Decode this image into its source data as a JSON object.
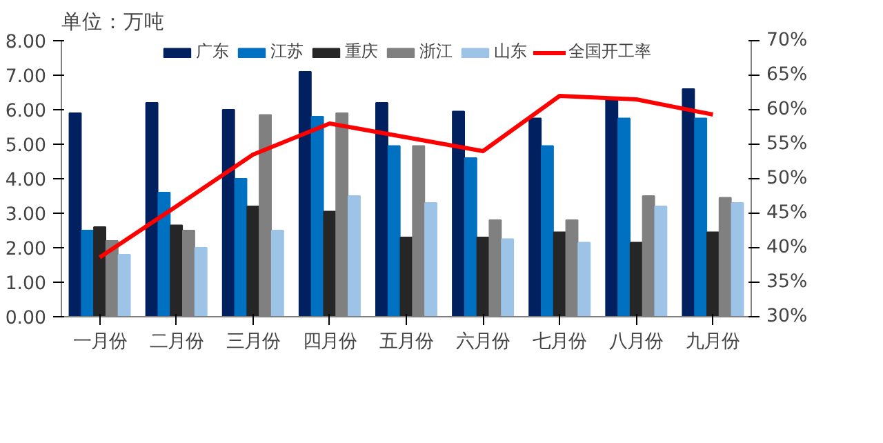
{
  "chart_data": {
    "type": "bar",
    "title": "单位：万吨",
    "categories": [
      "一月份",
      "二月份",
      "三月份",
      "四月份",
      "五月份",
      "六月份",
      "七月份",
      "八月份",
      "九月份"
    ],
    "series": [
      {
        "name": "广东",
        "color": "#002060",
        "values": [
          5.9,
          6.2,
          6.0,
          7.1,
          6.2,
          5.95,
          5.75,
          6.3,
          6.6
        ]
      },
      {
        "name": "江苏",
        "color": "#0070c0",
        "values": [
          2.5,
          3.6,
          4.0,
          5.8,
          4.95,
          4.6,
          4.95,
          5.75,
          5.75
        ]
      },
      {
        "name": "重庆",
        "color": "#262626",
        "values": [
          2.6,
          2.65,
          3.2,
          3.05,
          2.3,
          2.3,
          2.45,
          2.15,
          2.45
        ]
      },
      {
        "name": "浙江",
        "color": "#808080",
        "values": [
          2.2,
          2.5,
          5.85,
          5.9,
          4.95,
          2.8,
          2.8,
          3.5,
          3.45
        ]
      },
      {
        "name": "山东",
        "color": "#9dc3e6",
        "values": [
          1.8,
          2.0,
          2.5,
          3.5,
          3.3,
          2.25,
          2.15,
          3.2,
          3.3
        ]
      },
      {
        "name": "全国开工率",
        "color": "#ff0000",
        "type": "line",
        "axis": "y2",
        "values": [
          38.6,
          46,
          53.5,
          58,
          56,
          54,
          62,
          61.5,
          59.3
        ]
      }
    ],
    "ylim": [
      0,
      8
    ],
    "yticks": [
      {
        "value": 0,
        "label": "0.00"
      },
      {
        "value": 1,
        "label": "1.00"
      },
      {
        "value": 2,
        "label": "2.00"
      },
      {
        "value": 3,
        "label": "3.00"
      },
      {
        "value": 4,
        "label": "4.00"
      },
      {
        "value": 5,
        "label": "5.00"
      },
      {
        "value": 6,
        "label": "6.00"
      },
      {
        "value": 7,
        "label": "7.00"
      },
      {
        "value": 8,
        "label": "8.00"
      }
    ],
    "y2lim": [
      30,
      70
    ],
    "y2ticks": [
      {
        "value": 30,
        "label": "30%"
      },
      {
        "value": 35,
        "label": "35%"
      },
      {
        "value": 40,
        "label": "40%"
      },
      {
        "value": 45,
        "label": "45%"
      },
      {
        "value": 50,
        "label": "50%"
      },
      {
        "value": 55,
        "label": "55%"
      },
      {
        "value": 60,
        "label": "60%"
      },
      {
        "value": 65,
        "label": "65%"
      },
      {
        "value": 70,
        "label": "70%"
      }
    ],
    "legend": "top",
    "grid": false
  }
}
